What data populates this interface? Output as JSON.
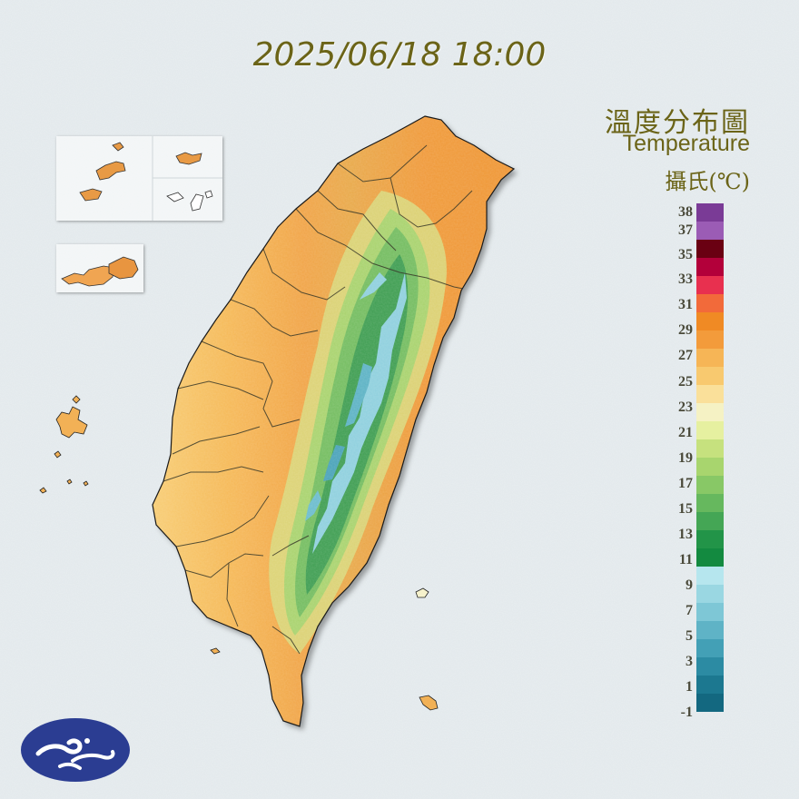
{
  "map": {
    "timestamp": "2025/06/18 18:00",
    "legend": {
      "title_zh": "溫度分布圖",
      "title_en": "Temperature",
      "unit": "攝氏(℃)",
      "ticks": [
        "38",
        "37",
        "35",
        "33",
        "31",
        "29",
        "27",
        "25",
        "23",
        "21",
        "19",
        "17",
        "15",
        "13",
        "11",
        "9",
        "7",
        "5",
        "3",
        "1",
        "-1"
      ],
      "colors": [
        "#7a3b96",
        "#9b5cb5",
        "#6a0012",
        "#b3003a",
        "#e8304f",
        "#f26a3a",
        "#f08a24",
        "#f39b3b",
        "#f6b556",
        "#f8c96f",
        "#fae09a",
        "#f5f2c4",
        "#e6f0a0",
        "#c6e17e",
        "#a8d56e",
        "#88c866",
        "#66b85e",
        "#44a655",
        "#229448",
        "#138a40",
        "#b6e6ee",
        "#9ad7e2",
        "#7ec7d6",
        "#5fb3c6",
        "#43a0b6",
        "#2c8ba3",
        "#1c7890",
        "#136880"
      ]
    },
    "region": "Taiwan",
    "logo": "cwa-logo"
  }
}
